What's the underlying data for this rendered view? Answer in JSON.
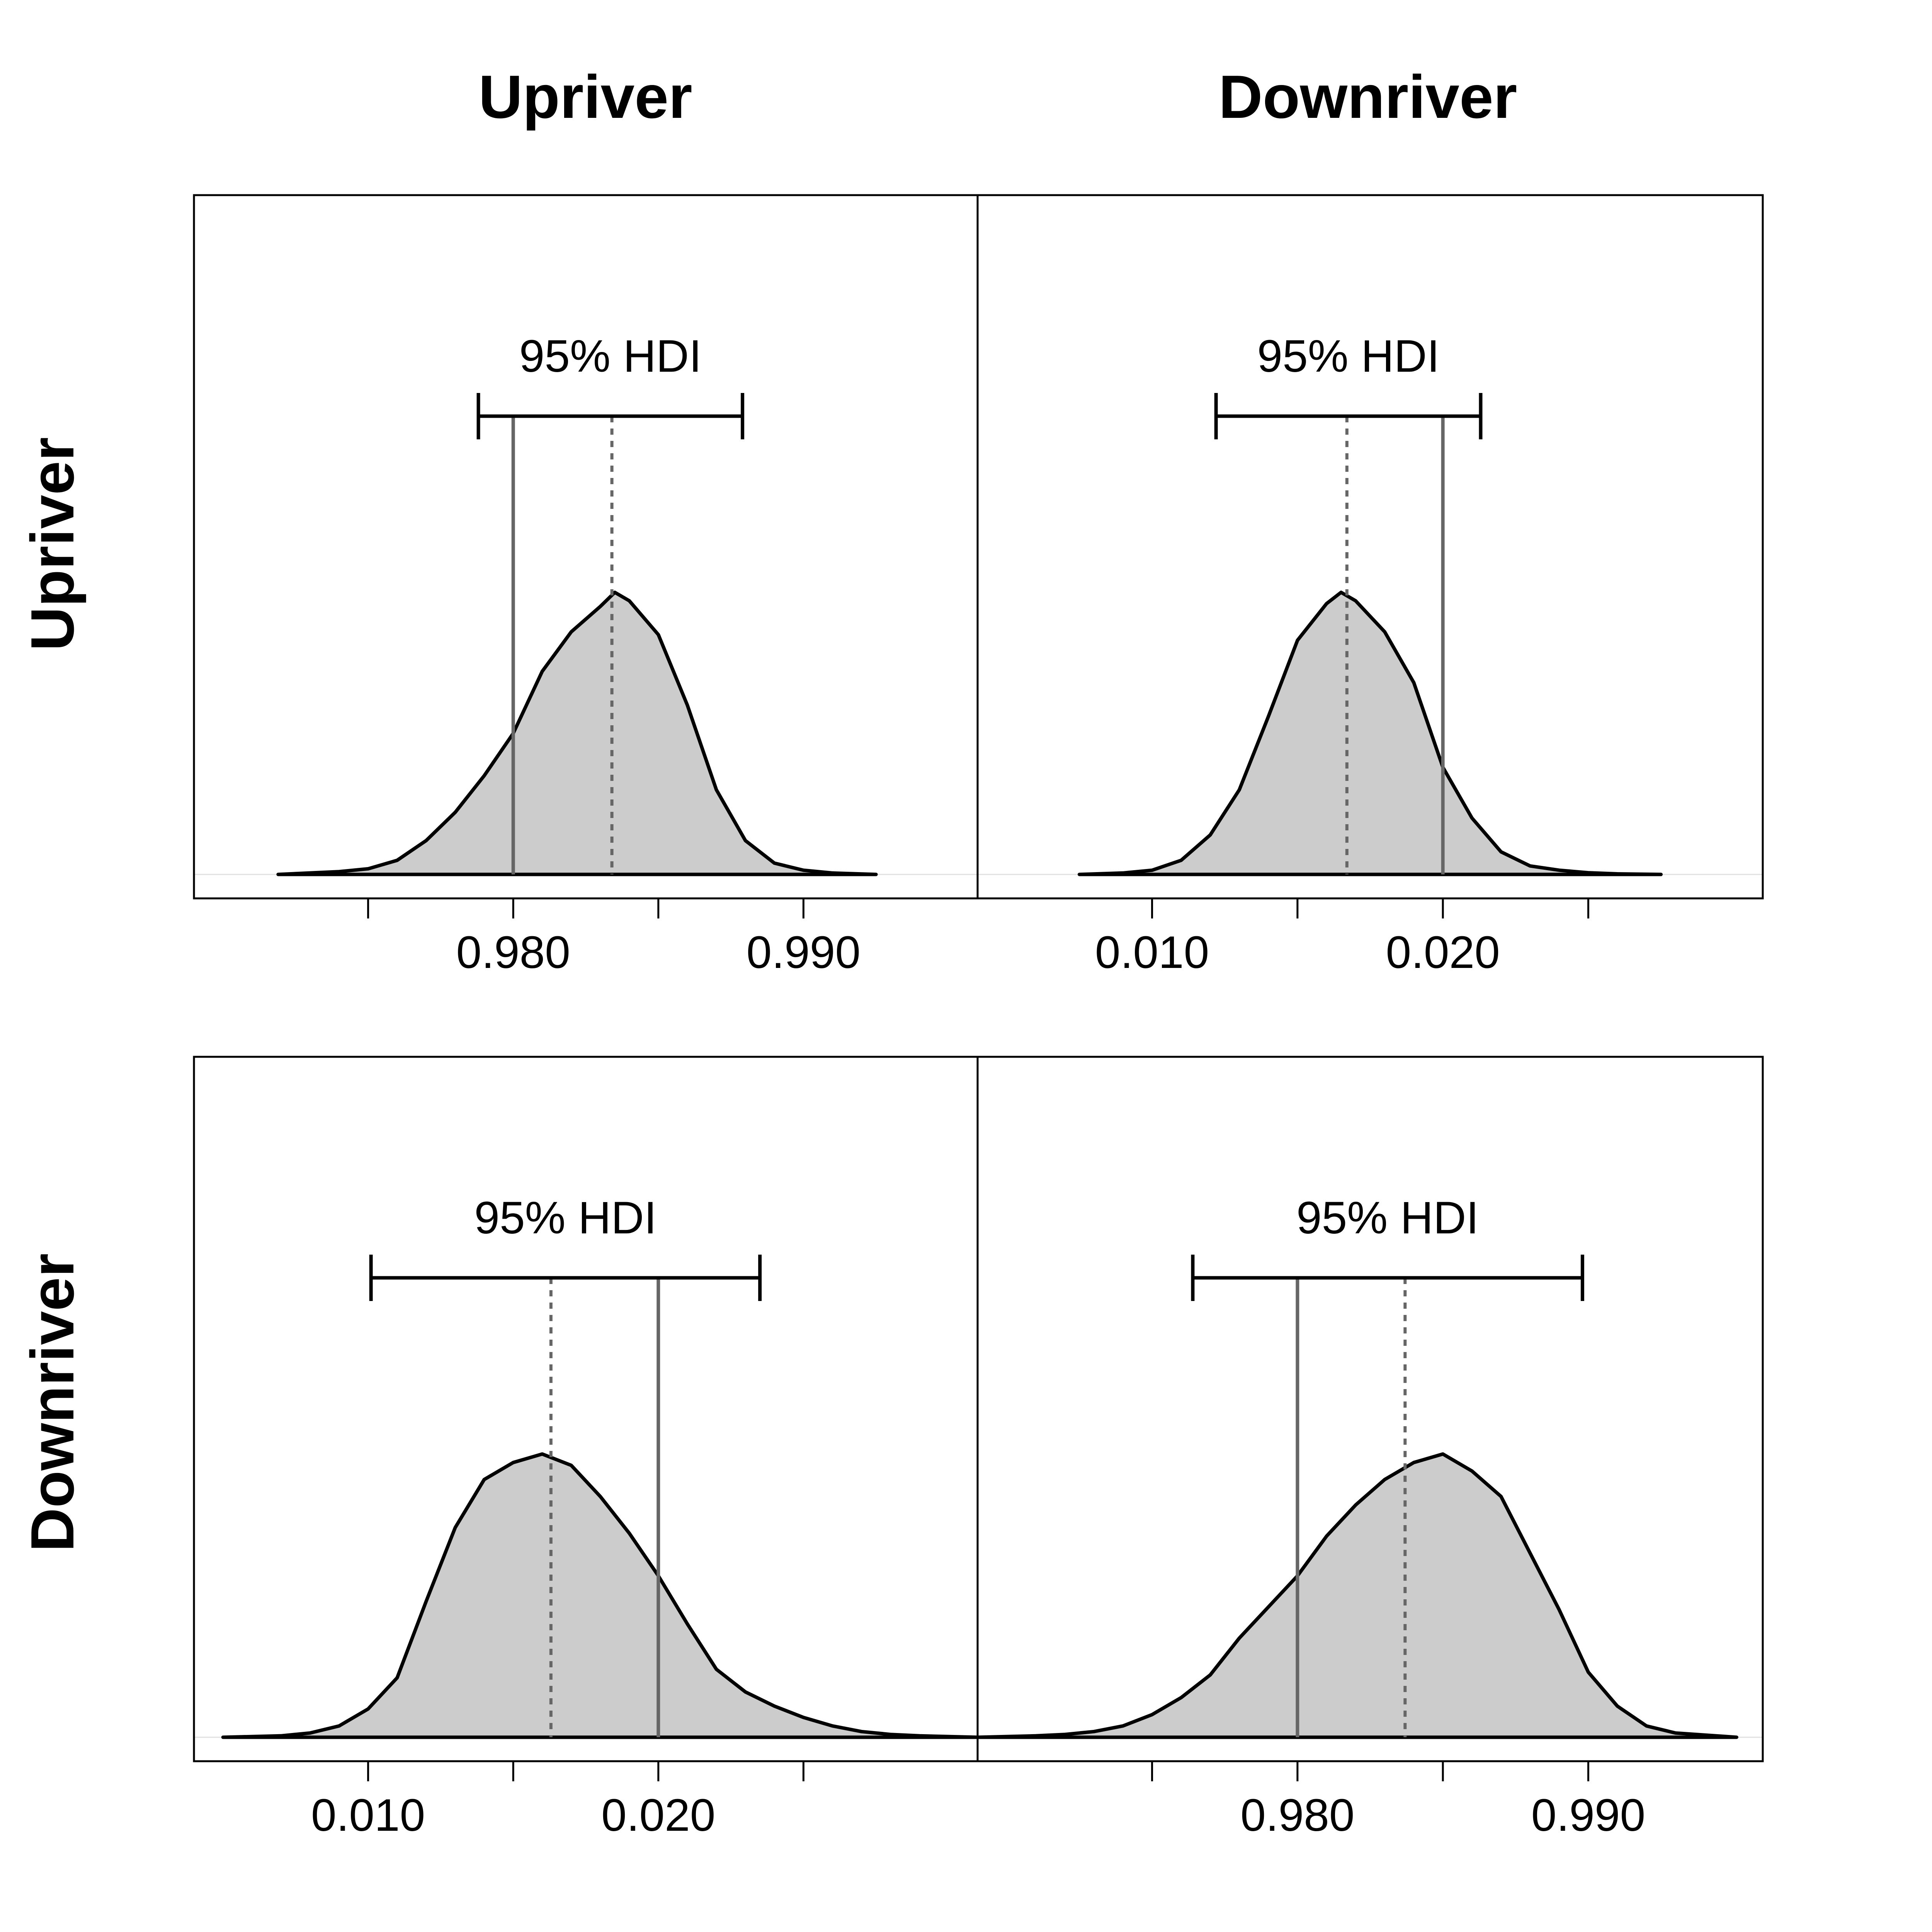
{
  "column_titles": [
    "Upriver",
    "Downriver"
  ],
  "row_titles": [
    "Upriver",
    "Downriver"
  ],
  "colors": {
    "fill": "#cccccc",
    "outline": "#000000",
    "reference_line": "#666666",
    "mean_line": "#666666"
  },
  "chart_data": [
    {
      "type": "area",
      "panel": "row 1, column 1",
      "xlim": [
        0.969,
        0.996
      ],
      "xticks": [
        0.975,
        0.98,
        0.985,
        0.99
      ],
      "tick_labels": [
        "",
        "0.980",
        "",
        "0.990"
      ],
      "density": {
        "x": [
          0.9719,
          0.974,
          0.975,
          0.976,
          0.977,
          0.978,
          0.979,
          0.98,
          0.981,
          0.982,
          0.983,
          0.9835,
          0.984,
          0.985,
          0.986,
          0.987,
          0.988,
          0.989,
          0.99,
          0.991,
          0.9925
        ],
        "y": [
          0.0,
          0.01,
          0.02,
          0.05,
          0.12,
          0.22,
          0.35,
          0.5,
          0.72,
          0.86,
          0.95,
          1.0,
          0.97,
          0.85,
          0.6,
          0.3,
          0.12,
          0.04,
          0.015,
          0.005,
          0.0
        ]
      },
      "reference_line": 0.98,
      "mean": 0.9834,
      "hdi": [
        0.9788,
        0.9879
      ],
      "hdi_label": "95% HDI"
    },
    {
      "type": "area",
      "panel": "row 1, column 2",
      "xlim": [
        0.004,
        0.031
      ],
      "xticks": [
        0.01,
        0.015,
        0.02,
        0.025
      ],
      "tick_labels": [
        "0.010",
        "",
        "0.020",
        ""
      ],
      "density": {
        "x": [
          0.0075,
          0.009,
          0.01,
          0.011,
          0.012,
          0.013,
          0.014,
          0.015,
          0.016,
          0.0165,
          0.017,
          0.018,
          0.019,
          0.02,
          0.021,
          0.022,
          0.023,
          0.024,
          0.025,
          0.026,
          0.0275
        ],
        "y": [
          0.0,
          0.005,
          0.015,
          0.05,
          0.14,
          0.3,
          0.56,
          0.83,
          0.96,
          1.0,
          0.97,
          0.86,
          0.68,
          0.38,
          0.2,
          0.08,
          0.03,
          0.015,
          0.006,
          0.002,
          0.0
        ]
      },
      "reference_line": 0.02,
      "mean": 0.0167,
      "hdi": [
        0.0122,
        0.0213
      ],
      "hdi_label": "95% HDI"
    },
    {
      "type": "area",
      "panel": "row 2, column 1",
      "xlim": [
        0.004,
        0.031
      ],
      "xticks": [
        0.01,
        0.015,
        0.02,
        0.025
      ],
      "tick_labels": [
        "0.010",
        "",
        "0.020",
        ""
      ],
      "density": {
        "x": [
          0.005,
          0.007,
          0.008,
          0.009,
          0.01,
          0.011,
          0.012,
          0.013,
          0.014,
          0.015,
          0.016,
          0.017,
          0.018,
          0.019,
          0.02,
          0.021,
          0.022,
          0.023,
          0.024,
          0.025,
          0.026,
          0.027,
          0.028,
          0.029,
          0.031
        ],
        "y": [
          0.0,
          0.005,
          0.015,
          0.04,
          0.1,
          0.21,
          0.48,
          0.74,
          0.91,
          0.97,
          1.0,
          0.96,
          0.85,
          0.72,
          0.57,
          0.4,
          0.24,
          0.16,
          0.11,
          0.07,
          0.04,
          0.02,
          0.01,
          0.005,
          0.0
        ]
      },
      "reference_line": 0.02,
      "mean": 0.0163,
      "hdi": [
        0.0101,
        0.0235
      ],
      "hdi_label": "95% HDI"
    },
    {
      "type": "area",
      "panel": "row 2, column 2",
      "xlim": [
        0.969,
        0.996
      ],
      "xticks": [
        0.975,
        0.98,
        0.985,
        0.99
      ],
      "tick_labels": [
        "",
        "0.980",
        "",
        "0.990"
      ],
      "density": {
        "x": [
          0.969,
          0.971,
          0.972,
          0.973,
          0.974,
          0.975,
          0.976,
          0.977,
          0.978,
          0.979,
          0.98,
          0.981,
          0.982,
          0.983,
          0.984,
          0.985,
          0.986,
          0.987,
          0.988,
          0.989,
          0.99,
          0.991,
          0.992,
          0.993,
          0.9951
        ],
        "y": [
          0.0,
          0.005,
          0.01,
          0.02,
          0.04,
          0.08,
          0.14,
          0.22,
          0.35,
          0.46,
          0.57,
          0.71,
          0.82,
          0.91,
          0.97,
          1.0,
          0.94,
          0.85,
          0.65,
          0.45,
          0.23,
          0.11,
          0.04,
          0.015,
          0.0
        ]
      },
      "reference_line": 0.98,
      "mean": 0.9837,
      "hdi": [
        0.9764,
        0.9898
      ],
      "hdi_label": "95% HDI"
    }
  ]
}
